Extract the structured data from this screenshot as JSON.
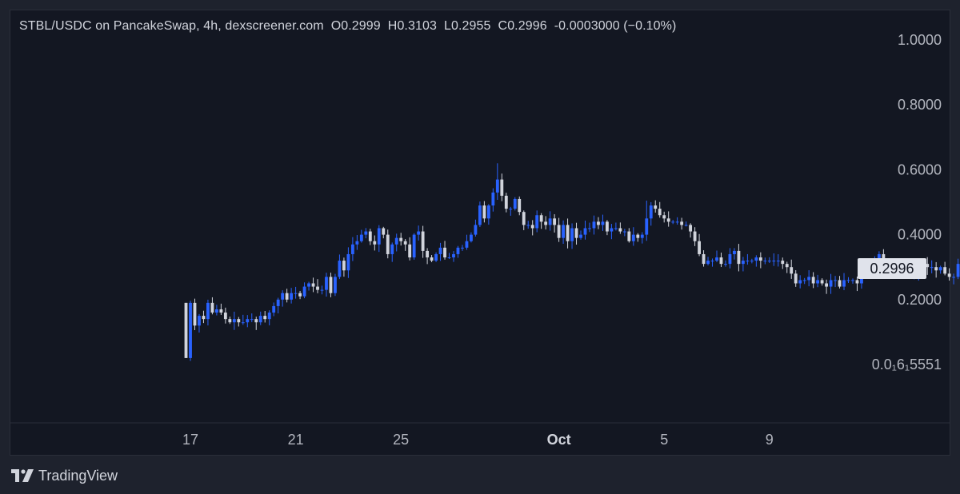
{
  "header": {
    "symbol_text": "STBL/USDC on PancakeSwap, 4h, dexscreener.com",
    "ohlc": [
      {
        "key": "O",
        "value": "0.2999"
      },
      {
        "key": "H",
        "value": "0.3103"
      },
      {
        "key": "L",
        "value": "0.2955"
      },
      {
        "key": "C",
        "value": "0.2996"
      }
    ],
    "change_text": "-0.0003000 (−0.10%)"
  },
  "price_tag": "0.2996",
  "footer": {
    "brand": "TradingView",
    "logo_icon": "tradingview-logo-icon"
  },
  "colors": {
    "background": "#131722",
    "outer": "#1e222d",
    "up": "#2962ff",
    "down": "#d1d4dc",
    "axis_text": "#b2b5be",
    "price_tag_bg": "#e0e3eb"
  },
  "chart_data": {
    "type": "candlestick",
    "title": "STBL/USDC on PancakeSwap, 4h, dexscreener.com",
    "interval": "4h",
    "grid": false,
    "y_tick_labels": [
      "1.0000",
      "0.8000",
      "0.6000",
      "0.4000",
      "0.2000",
      "0.0₁6₁5551"
    ],
    "y_tick_values": [
      1.0,
      0.8,
      0.6,
      0.4,
      0.2,
      0.0
    ],
    "ylim": [
      -0.16,
      1.08
    ],
    "x_tick_labels": [
      {
        "label": "17",
        "x": "2025-09-17",
        "bold": false
      },
      {
        "label": "21",
        "x": "2025-09-21",
        "bold": false
      },
      {
        "label": "25",
        "x": "2025-09-25",
        "bold": false
      },
      {
        "label": "Oct",
        "x": "2025-10-01",
        "bold": true
      },
      {
        "label": "5",
        "x": "2025-10-05",
        "bold": false
      },
      {
        "label": "9",
        "x": "2025-10-09",
        "bold": false
      }
    ],
    "x_range": [
      "2025-09-17",
      "2025-10-10"
    ],
    "candles_start": "2025-09-16T20:00",
    "bars_per_day": 6,
    "last_close": 0.2996,
    "closes": [
      0.02,
      0.19,
      0.12,
      0.15,
      0.14,
      0.19,
      0.16,
      0.17,
      0.16,
      0.14,
      0.13,
      0.14,
      0.13,
      0.13,
      0.14,
      0.14,
      0.13,
      0.15,
      0.14,
      0.16,
      0.18,
      0.2,
      0.22,
      0.2,
      0.22,
      0.22,
      0.21,
      0.24,
      0.25,
      0.24,
      0.23,
      0.23,
      0.27,
      0.22,
      0.27,
      0.32,
      0.29,
      0.34,
      0.37,
      0.38,
      0.4,
      0.41,
      0.38,
      0.37,
      0.42,
      0.4,
      0.34,
      0.37,
      0.39,
      0.38,
      0.37,
      0.33,
      0.4,
      0.41,
      0.35,
      0.33,
      0.32,
      0.34,
      0.36,
      0.33,
      0.33,
      0.34,
      0.36,
      0.36,
      0.38,
      0.4,
      0.43,
      0.49,
      0.45,
      0.49,
      0.53,
      0.57,
      0.52,
      0.48,
      0.48,
      0.51,
      0.47,
      0.43,
      0.43,
      0.42,
      0.46,
      0.44,
      0.43,
      0.45,
      0.43,
      0.39,
      0.43,
      0.38,
      0.42,
      0.39,
      0.4,
      0.42,
      0.42,
      0.44,
      0.43,
      0.44,
      0.41,
      0.42,
      0.42,
      0.41,
      0.41,
      0.38,
      0.4,
      0.39,
      0.4,
      0.45,
      0.49,
      0.48,
      0.46,
      0.45,
      0.44,
      0.44,
      0.44,
      0.43,
      0.43,
      0.41,
      0.38,
      0.34,
      0.31,
      0.32,
      0.32,
      0.33,
      0.31,
      0.31,
      0.34,
      0.35,
      0.31,
      0.32,
      0.32,
      0.32,
      0.33,
      0.32,
      0.32,
      0.32,
      0.32,
      0.32,
      0.31,
      0.3,
      0.28,
      0.25,
      0.26,
      0.26,
      0.27,
      0.25,
      0.26,
      0.25,
      0.24,
      0.26,
      0.26,
      0.24,
      0.26,
      0.26,
      0.26,
      0.25,
      0.27,
      0.3,
      0.3,
      0.32,
      0.34,
      0.31,
      0.3,
      0.29,
      0.28,
      0.29,
      0.28,
      0.28,
      0.28,
      0.29,
      0.31,
      0.3,
      0.3,
      0.29,
      0.3,
      0.28,
      0.27,
      0.27,
      0.31,
      0.32,
      0.29,
      0.28,
      0.3,
      0.2996
    ]
  }
}
